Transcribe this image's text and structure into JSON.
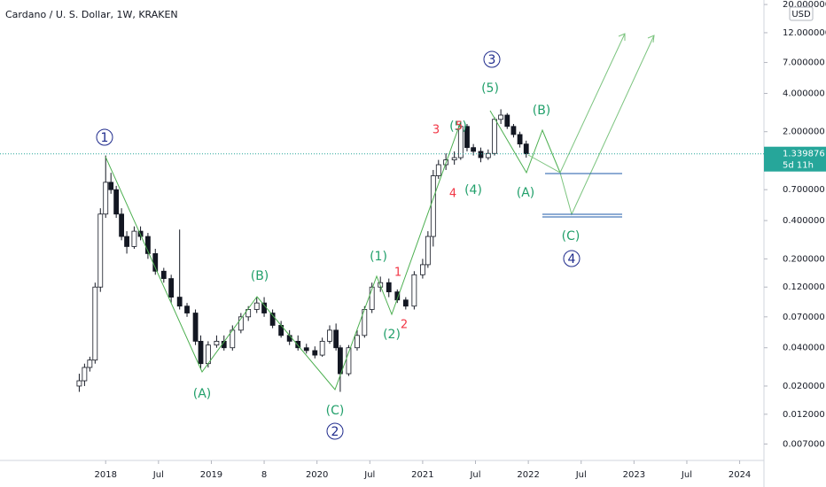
{
  "chart_data": {
    "type": "candlestick",
    "title": "Cardano / U. S. Dollar, 1W, KRAKEN",
    "currency": "USD",
    "log_scale": true,
    "last_price": 1.339876,
    "countdown": "5d 11h",
    "xlim": [
      2017.0,
      2024.23
    ],
    "ylim": [
      0.0052,
      21.7
    ],
    "xticks": [
      2018,
      {
        "value": 2018.5,
        "label": "Jul"
      },
      2019,
      {
        "value": 2019.5,
        "label": "8"
      },
      2020,
      {
        "value": 2020.5,
        "label": "Jul"
      },
      2021,
      {
        "value": 2021.5,
        "label": "Jul"
      },
      2022,
      {
        "value": 2022.5,
        "label": "Jul"
      },
      2023,
      {
        "value": 2023.5,
        "label": "Jul"
      },
      2024
    ],
    "yticks": [
      {
        "value": 20,
        "label": "20.000000"
      },
      {
        "value": 12,
        "label": "12.000000"
      },
      {
        "value": 7,
        "label": "7.000000"
      },
      {
        "value": 4,
        "label": "4.000000"
      },
      {
        "value": 2,
        "label": "2.000000"
      },
      {
        "value": 0.7,
        "label": "0.700000"
      },
      {
        "value": 0.4,
        "label": "0.400000"
      },
      {
        "value": 0.2,
        "label": "0.200000"
      },
      {
        "value": 0.12,
        "label": "0.120000"
      },
      {
        "value": 0.07,
        "label": "0.070000"
      },
      {
        "value": 0.04,
        "label": "0.040000"
      },
      {
        "value": 0.02,
        "label": "0.020000"
      },
      {
        "value": 0.012,
        "label": "0.012000"
      },
      {
        "value": 0.007,
        "label": "0.007000"
      }
    ],
    "x": [
      2017.75,
      2017.8,
      2017.85,
      2017.9,
      2017.95,
      2018.0,
      2018.05,
      2018.1,
      2018.15,
      2018.2,
      2018.27,
      2018.33,
      2018.4,
      2018.47,
      2018.55,
      2018.62,
      2018.7,
      2018.77,
      2018.85,
      2018.9,
      2018.97,
      2019.05,
      2019.12,
      2019.2,
      2019.28,
      2019.35,
      2019.43,
      2019.5,
      2019.58,
      2019.66,
      2019.74,
      2019.82,
      2019.9,
      2019.98,
      2020.05,
      2020.12,
      2020.18,
      2020.22,
      2020.3,
      2020.38,
      2020.45,
      2020.52,
      2020.6,
      2020.68,
      2020.76,
      2020.84,
      2020.92,
      2021.0,
      2021.05,
      2021.1,
      2021.15,
      2021.22,
      2021.3,
      2021.36,
      2021.42,
      2021.48,
      2021.55,
      2021.62,
      2021.68,
      2021.74,
      2021.8,
      2021.86,
      2021.92,
      2021.98
    ],
    "open": [
      0.02,
      0.022,
      0.028,
      0.032,
      0.12,
      0.45,
      0.8,
      0.7,
      0.45,
      0.3,
      0.25,
      0.33,
      0.3,
      0.22,
      0.16,
      0.14,
      0.1,
      0.085,
      0.075,
      0.045,
      0.03,
      0.042,
      0.045,
      0.04,
      0.055,
      0.07,
      0.08,
      0.09,
      0.075,
      0.06,
      0.05,
      0.045,
      0.04,
      0.038,
      0.035,
      0.045,
      0.055,
      0.04,
      0.025,
      0.04,
      0.05,
      0.08,
      0.12,
      0.13,
      0.11,
      0.095,
      0.085,
      0.15,
      0.18,
      0.3,
      0.9,
      1.1,
      1.2,
      1.25,
      2.2,
      1.5,
      1.4,
      1.25,
      1.35,
      2.5,
      2.7,
      2.2,
      1.9,
      1.6
    ],
    "high": [
      0.025,
      0.03,
      0.034,
      0.13,
      0.5,
      1.3,
      0.95,
      0.75,
      0.5,
      0.33,
      0.36,
      0.36,
      0.32,
      0.24,
      0.17,
      0.15,
      0.34,
      0.09,
      0.08,
      0.05,
      0.045,
      0.05,
      0.05,
      0.06,
      0.075,
      0.085,
      0.1,
      0.1,
      0.08,
      0.065,
      0.055,
      0.05,
      0.043,
      0.041,
      0.048,
      0.06,
      0.062,
      0.042,
      0.042,
      0.055,
      0.085,
      0.13,
      0.145,
      0.14,
      0.115,
      0.1,
      0.16,
      0.2,
      0.33,
      1.0,
      1.2,
      1.35,
      1.4,
      2.4,
      2.3,
      1.6,
      1.5,
      1.45,
      2.6,
      3.0,
      2.8,
      2.3,
      2.0,
      1.7
    ],
    "low": [
      0.018,
      0.02,
      0.026,
      0.03,
      0.11,
      0.42,
      0.65,
      0.42,
      0.28,
      0.22,
      0.24,
      0.28,
      0.2,
      0.15,
      0.13,
      0.09,
      0.08,
      0.07,
      0.042,
      0.027,
      0.028,
      0.04,
      0.038,
      0.038,
      0.052,
      0.065,
      0.075,
      0.07,
      0.057,
      0.048,
      0.042,
      0.038,
      0.036,
      0.033,
      0.034,
      0.043,
      0.038,
      0.018,
      0.024,
      0.038,
      0.048,
      0.075,
      0.11,
      0.1,
      0.09,
      0.08,
      0.08,
      0.14,
      0.17,
      0.25,
      0.85,
      1.0,
      1.1,
      1.2,
      1.4,
      1.3,
      1.15,
      1.2,
      1.3,
      2.3,
      2.1,
      1.8,
      1.5,
      1.25
    ],
    "close": [
      0.022,
      0.028,
      0.032,
      0.12,
      0.45,
      0.8,
      0.7,
      0.45,
      0.3,
      0.25,
      0.33,
      0.3,
      0.22,
      0.16,
      0.14,
      0.1,
      0.085,
      0.075,
      0.045,
      0.03,
      0.042,
      0.045,
      0.04,
      0.055,
      0.07,
      0.08,
      0.09,
      0.075,
      0.06,
      0.05,
      0.045,
      0.04,
      0.038,
      0.035,
      0.045,
      0.055,
      0.04,
      0.025,
      0.04,
      0.05,
      0.08,
      0.12,
      0.13,
      0.11,
      0.095,
      0.085,
      0.15,
      0.18,
      0.3,
      0.9,
      1.1,
      1.2,
      1.25,
      2.2,
      1.5,
      1.4,
      1.25,
      1.35,
      2.5,
      2.7,
      2.2,
      1.9,
      1.6,
      1.34
    ],
    "annotations": [
      "1",
      "(A)",
      "(B)",
      "(C)",
      "2",
      "(1)",
      "1",
      "(2)",
      "2",
      "3",
      "4",
      "(4)",
      "(5)",
      "5",
      "(5)",
      "3",
      "(B)",
      "(A)",
      "(C)",
      "4"
    ]
  }
}
